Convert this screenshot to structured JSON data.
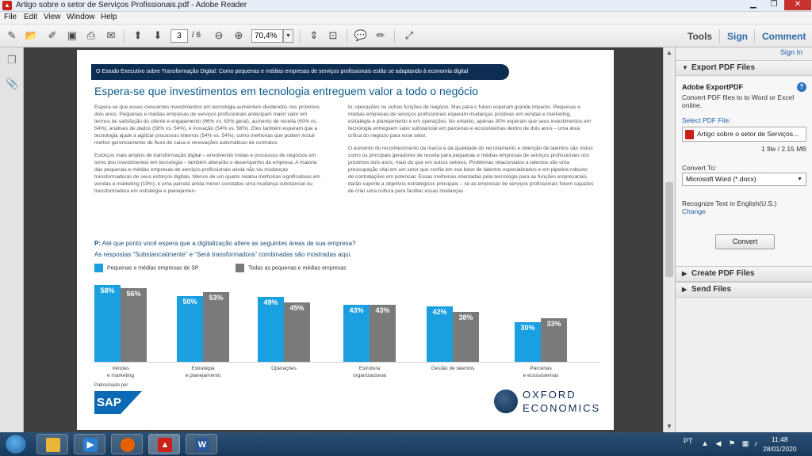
{
  "window": {
    "title": "Artigo sobre o setor de Serviços Profissionais.pdf - Adobe Reader"
  },
  "menu": [
    "File",
    "Edit",
    "View",
    "Window",
    "Help"
  ],
  "toolbar": {
    "page_current": "3",
    "page_total": "/ 6",
    "zoom": "70,4%",
    "tools": "Tools",
    "sign": "Sign",
    "comment": "Comment"
  },
  "document": {
    "banner": "O Estudo Executivo sobre Transformação Digital: Como pequenas e médias empresas de serviços profissionais estão se adaptando à economia digital",
    "headline": "Espera-se que investimentos em tecnologia entreguem valor a todo o negócio",
    "col1": [
      "Espera-se que esses crescentes investimentos em tecnologia aumentem dividendos nos próximos dois anos. Pequenas e médias empresas de serviços profissionais antecipam maior valor em termos de satisfação do cliente e engajamento (66% vs. 63% geral), aumento de receita (60% vs. 54%), análises de dados (58% vs. 54%), e inovação (54% vs. 58%). Eles também esperam que a tecnologia ajude a agilizar processos internos (54% vs. 54%); como melhorias que podem incluir melhor gerenciamento de fluxo de caixa e renovações automáticas de contratos.",
      "Esforços mais amplos de transformação digital – envolvendo metas e processos de negócios em torno dos investimentos em tecnologia – também alterarão o desempenho da empresa. A maioria das pequenas e médias empresas de serviços profissionais ainda não viu mudanças transformadoras de seus esforços digitais. Menos de um quarto relatou melhorias significativas em vendas e marketing (19%), e uma parcela ainda menor constatou uma mudança substancial ou transformadora em estratégia e planejamen-"
    ],
    "col2": [
      "to, operações ou outras funções de negócio. Mas para o futuro esperam grande impacto. Pequenas e médias empresas de serviços profissionais esperam mudanças positivas em vendas e marketing, estratégia e planejamento e em operações. No entanto, apenas 30% esperam que seus investimentos em tecnologia entreguem valor substancial em parcerias e ecossistemas dentro de dois anos – uma área crítica do negócio para esse setor.",
      "O aumento do reconhecimento da marca e da qualidade do recrutamento e retenção de talentos são vistos como os principais geradores de receita para pequenas e médias empresas de serviços profissionais nos próximos dois anos, mais do que em outros setores. Problemas relacionados a talentos são uma preocupação vital em um setor que confia em sua base de talentos especializados e em pipeline robusto de contratações em potencial. Essas melhorias orientadas pela tecnologia para as funções empresariais darão suporte a objetivos estratégicos principais – se as empresas de serviços profissionais forem capazes de criar uma cultura para facilitar essas mudanças."
    ],
    "q_prefix": "P:",
    "q_text": " Até que ponto você espera que a digitalização altere as seguintes áreas de sua empresa?",
    "q_sub": "As respostas “Substancialmente” e “Será transformadora” combinadas são mostradas aqui.",
    "sponsor": "Patrocinado por",
    "sap": "SAP",
    "oxford_line1": "OXFORD",
    "oxford_line2": "ECONOMICS"
  },
  "chart_data": {
    "type": "bar",
    "title": "",
    "xlabel": "",
    "ylabel": "",
    "categories": [
      "Vendas\ne marketing",
      "Estratégia\ne planejamento",
      "Operações",
      "Estrutura\norganizacional",
      "Gestão de talentos",
      "Parcerias\ne ecossistemas"
    ],
    "series": [
      {
        "name": "Pequenas e médias empresas de SP",
        "color": "#1aa0e0",
        "values": [
          58,
          50,
          49,
          43,
          42,
          30
        ]
      },
      {
        "name": "Todas as pequenas e médias empresas",
        "color": "#7a7a7a",
        "values": [
          56,
          53,
          45,
          43,
          38,
          33
        ]
      }
    ],
    "ylim": [
      0,
      60
    ],
    "legend": "top-left",
    "grid": false
  },
  "right_panel": {
    "sign_in": "Sign In",
    "export_header": "Export PDF Files",
    "export_title": "Adobe ExportPDF",
    "export_desc": "Convert PDF files to to Word or Excel online.",
    "select_label": "Select PDF File:",
    "file_name": "Artigo sobre o setor de Serviços...",
    "file_info": "1 file / 2.15 MB",
    "convert_to": "Convert To:",
    "format": "Microsoft Word (*.docx)",
    "recognize": "Recognize Text in English(U.S.)",
    "change": "Change",
    "convert_button": "Convert",
    "create_header": "Create PDF Files",
    "send_header": "Send Files"
  },
  "taskbar": {
    "lang": "PT",
    "time": "11:48",
    "date": "28/01/2020"
  }
}
